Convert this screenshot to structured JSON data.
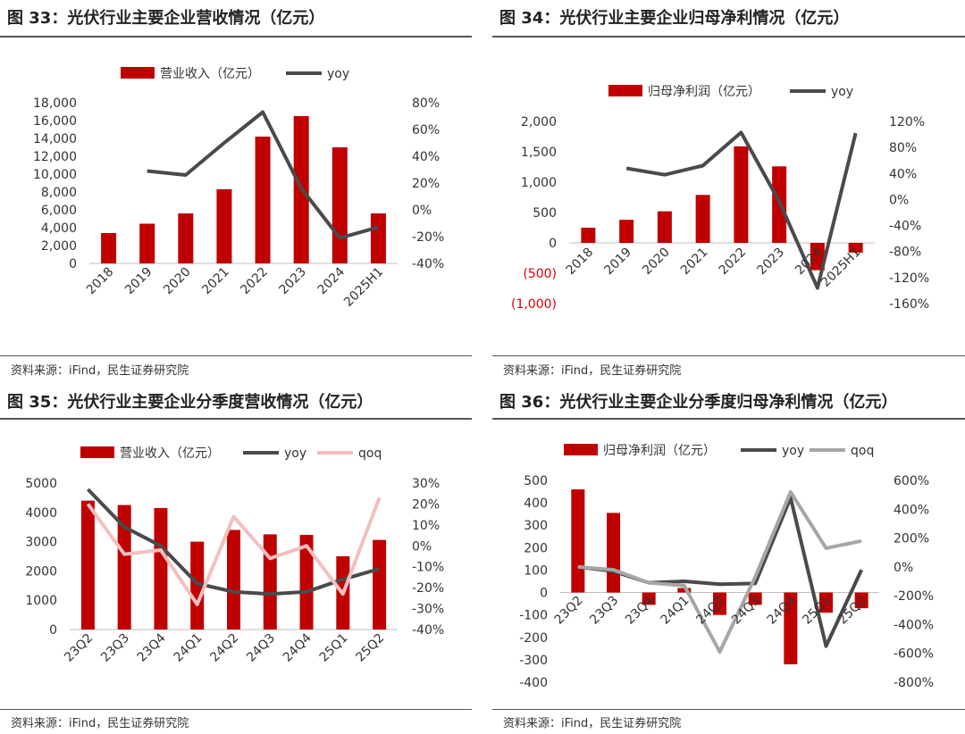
{
  "source": "资料来源：iFind，民生证券研究院",
  "colors": {
    "bar": "#C00000",
    "yoy": "#4a4a4a",
    "qoq_pink": "#f2bfbf",
    "qoq_gray": "#a6a6a6",
    "neg_label": "#e00000"
  },
  "charts": [
    {
      "id": "33",
      "title": "图 33：光伏行业主要企业营收情况（亿元）",
      "chart_data": {
        "type": "bar",
        "categories": [
          "2018",
          "2019",
          "2020",
          "2021",
          "2022",
          "2023",
          "2024",
          "2025H1"
        ],
        "series": [
          {
            "name": "营业收入（亿元）",
            "kind": "bar",
            "axis": "left",
            "values": [
              3400,
              4450,
              5600,
              8300,
              14200,
              16500,
              13000,
              5600
            ]
          },
          {
            "name": "yoy",
            "kind": "line",
            "axis": "right",
            "values": [
              null,
              29,
              26,
              50,
              73,
              16,
              -21,
              -13
            ]
          }
        ],
        "ylim_left": [
          0,
          18000
        ],
        "yticks_left": [
          "0",
          "2,000",
          "4,000",
          "6,000",
          "8,000",
          "10,000",
          "12,000",
          "14,000",
          "16,000",
          "18,000"
        ],
        "ylim_right": [
          -40,
          80
        ],
        "yticks_right": [
          "-40%",
          "-20%",
          "0%",
          "20%",
          "40%",
          "60%",
          "80%"
        ],
        "legend": "top"
      }
    },
    {
      "id": "34",
      "title": "图 34：光伏行业主要企业归母净利情况（亿元）",
      "chart_data": {
        "type": "bar",
        "categories": [
          "2018",
          "2019",
          "2020",
          "2021",
          "2022",
          "2023",
          "2024",
          "2025H1"
        ],
        "series": [
          {
            "name": "归母净利润（亿元）",
            "kind": "bar",
            "axis": "left",
            "values": [
              250,
              380,
              520,
              790,
              1590,
              1260,
              -450,
              -160
            ]
          },
          {
            "name": "yoy",
            "kind": "line",
            "axis": "right",
            "values": [
              null,
              48,
              38,
              52,
              103,
              -3,
              -136,
              102
            ]
          }
        ],
        "ylim_left": [
          -1000,
          2000
        ],
        "yticks_left": [
          "(1,000)",
          "(500)",
          "0",
          "500",
          "1,000",
          "1,500",
          "2,000"
        ],
        "ylim_right": [
          -160,
          120
        ],
        "yticks_right": [
          "-160%",
          "-120%",
          "-80%",
          "-40%",
          "0%",
          "40%",
          "80%",
          "120%"
        ],
        "legend": "top"
      }
    },
    {
      "id": "35",
      "title": "图 35：光伏行业主要企业分季度营收情况（亿元）",
      "chart_data": {
        "type": "bar",
        "categories": [
          "23Q2",
          "23Q3",
          "23Q4",
          "24Q1",
          "24Q2",
          "24Q3",
          "24Q4",
          "25Q1",
          "25Q2"
        ],
        "series": [
          {
            "name": "营业收入（亿元）",
            "kind": "bar",
            "axis": "left",
            "values": [
              4400,
              4250,
              4150,
              3000,
              3400,
              3250,
              3230,
              2500,
              3060
            ]
          },
          {
            "name": "yoy",
            "kind": "line",
            "axis": "right",
            "values": [
              27,
              9,
              0,
              -18,
              -22,
              -23,
              -22,
              -16,
              -11
            ]
          },
          {
            "name": "qoq",
            "kind": "line",
            "axis": "right",
            "values": [
              20,
              -4,
              -2,
              -28,
              14,
              -6,
              0,
              -23,
              23
            ]
          }
        ],
        "ylim_left": [
          0,
          5000
        ],
        "yticks_left": [
          "0",
          "1000",
          "2000",
          "3000",
          "4000",
          "5000"
        ],
        "ylim_right": [
          -40,
          30
        ],
        "yticks_right": [
          "-40%",
          "-30%",
          "-20%",
          "-10%",
          "0%",
          "10%",
          "20%",
          "30%"
        ],
        "legend": "top"
      }
    },
    {
      "id": "36",
      "title": "图 36：光伏行业主要企业分季度归母净利情况（亿元）",
      "chart_data": {
        "type": "bar",
        "categories": [
          "23Q2",
          "23Q3",
          "23Q4",
          "24Q1",
          "24Q2",
          "24Q3",
          "24Q4",
          "25Q1",
          "25Q2"
        ],
        "series": [
          {
            "name": "归母净利润（亿元）",
            "kind": "bar",
            "axis": "left",
            "values": [
              460,
              355,
              -55,
              20,
              -100,
              -55,
              -320,
              -90,
              -70
            ]
          },
          {
            "name": "yoy",
            "kind": "line",
            "axis": "right",
            "values": [
              0,
              -30,
              -110,
              -100,
              -120,
              -115,
              480,
              -550,
              -20
            ]
          },
          {
            "name": "qoq",
            "kind": "line",
            "axis": "right",
            "values": [
              0,
              -20,
              -110,
              -130,
              -590,
              -70,
              520,
              130,
              180
            ]
          }
        ],
        "ylim_left": [
          -400,
          500
        ],
        "yticks_left": [
          "-400",
          "-300",
          "-200",
          "-100",
          "0",
          "100",
          "200",
          "300",
          "400",
          "500"
        ],
        "ylim_right": [
          -800,
          600
        ],
        "yticks_right": [
          "-800%",
          "-600%",
          "-400%",
          "-200%",
          "0%",
          "200%",
          "400%",
          "600%"
        ],
        "legend": "top"
      }
    }
  ]
}
